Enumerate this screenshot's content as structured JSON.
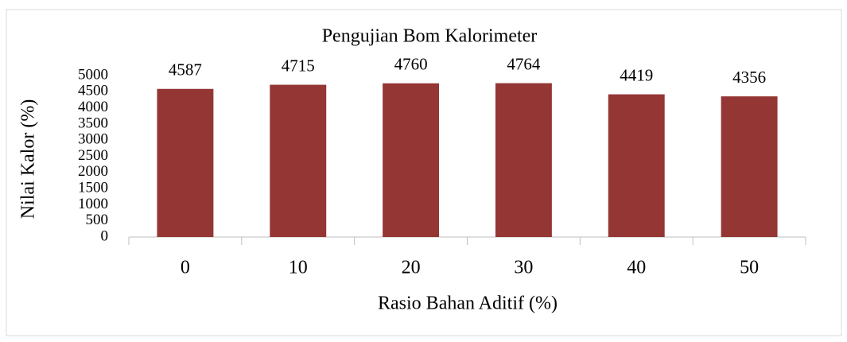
{
  "chart_data": {
    "type": "bar",
    "title": "Pengujian Bom Kalorimeter",
    "x_label": "Rasio Bahan Aditif (%)",
    "y_label": "Nilai Kalor (%)",
    "categories": [
      "0",
      "10",
      "20",
      "30",
      "40",
      "50"
    ],
    "values": [
      4587,
      4715,
      4760,
      4764,
      4419,
      4356
    ],
    "color": "#943634",
    "ylim": [
      0,
      5000
    ],
    "yticks": [
      0,
      500,
      1000,
      1500,
      2000,
      2500,
      3000,
      3500,
      4000,
      4500,
      5000
    ],
    "grid": false
  }
}
